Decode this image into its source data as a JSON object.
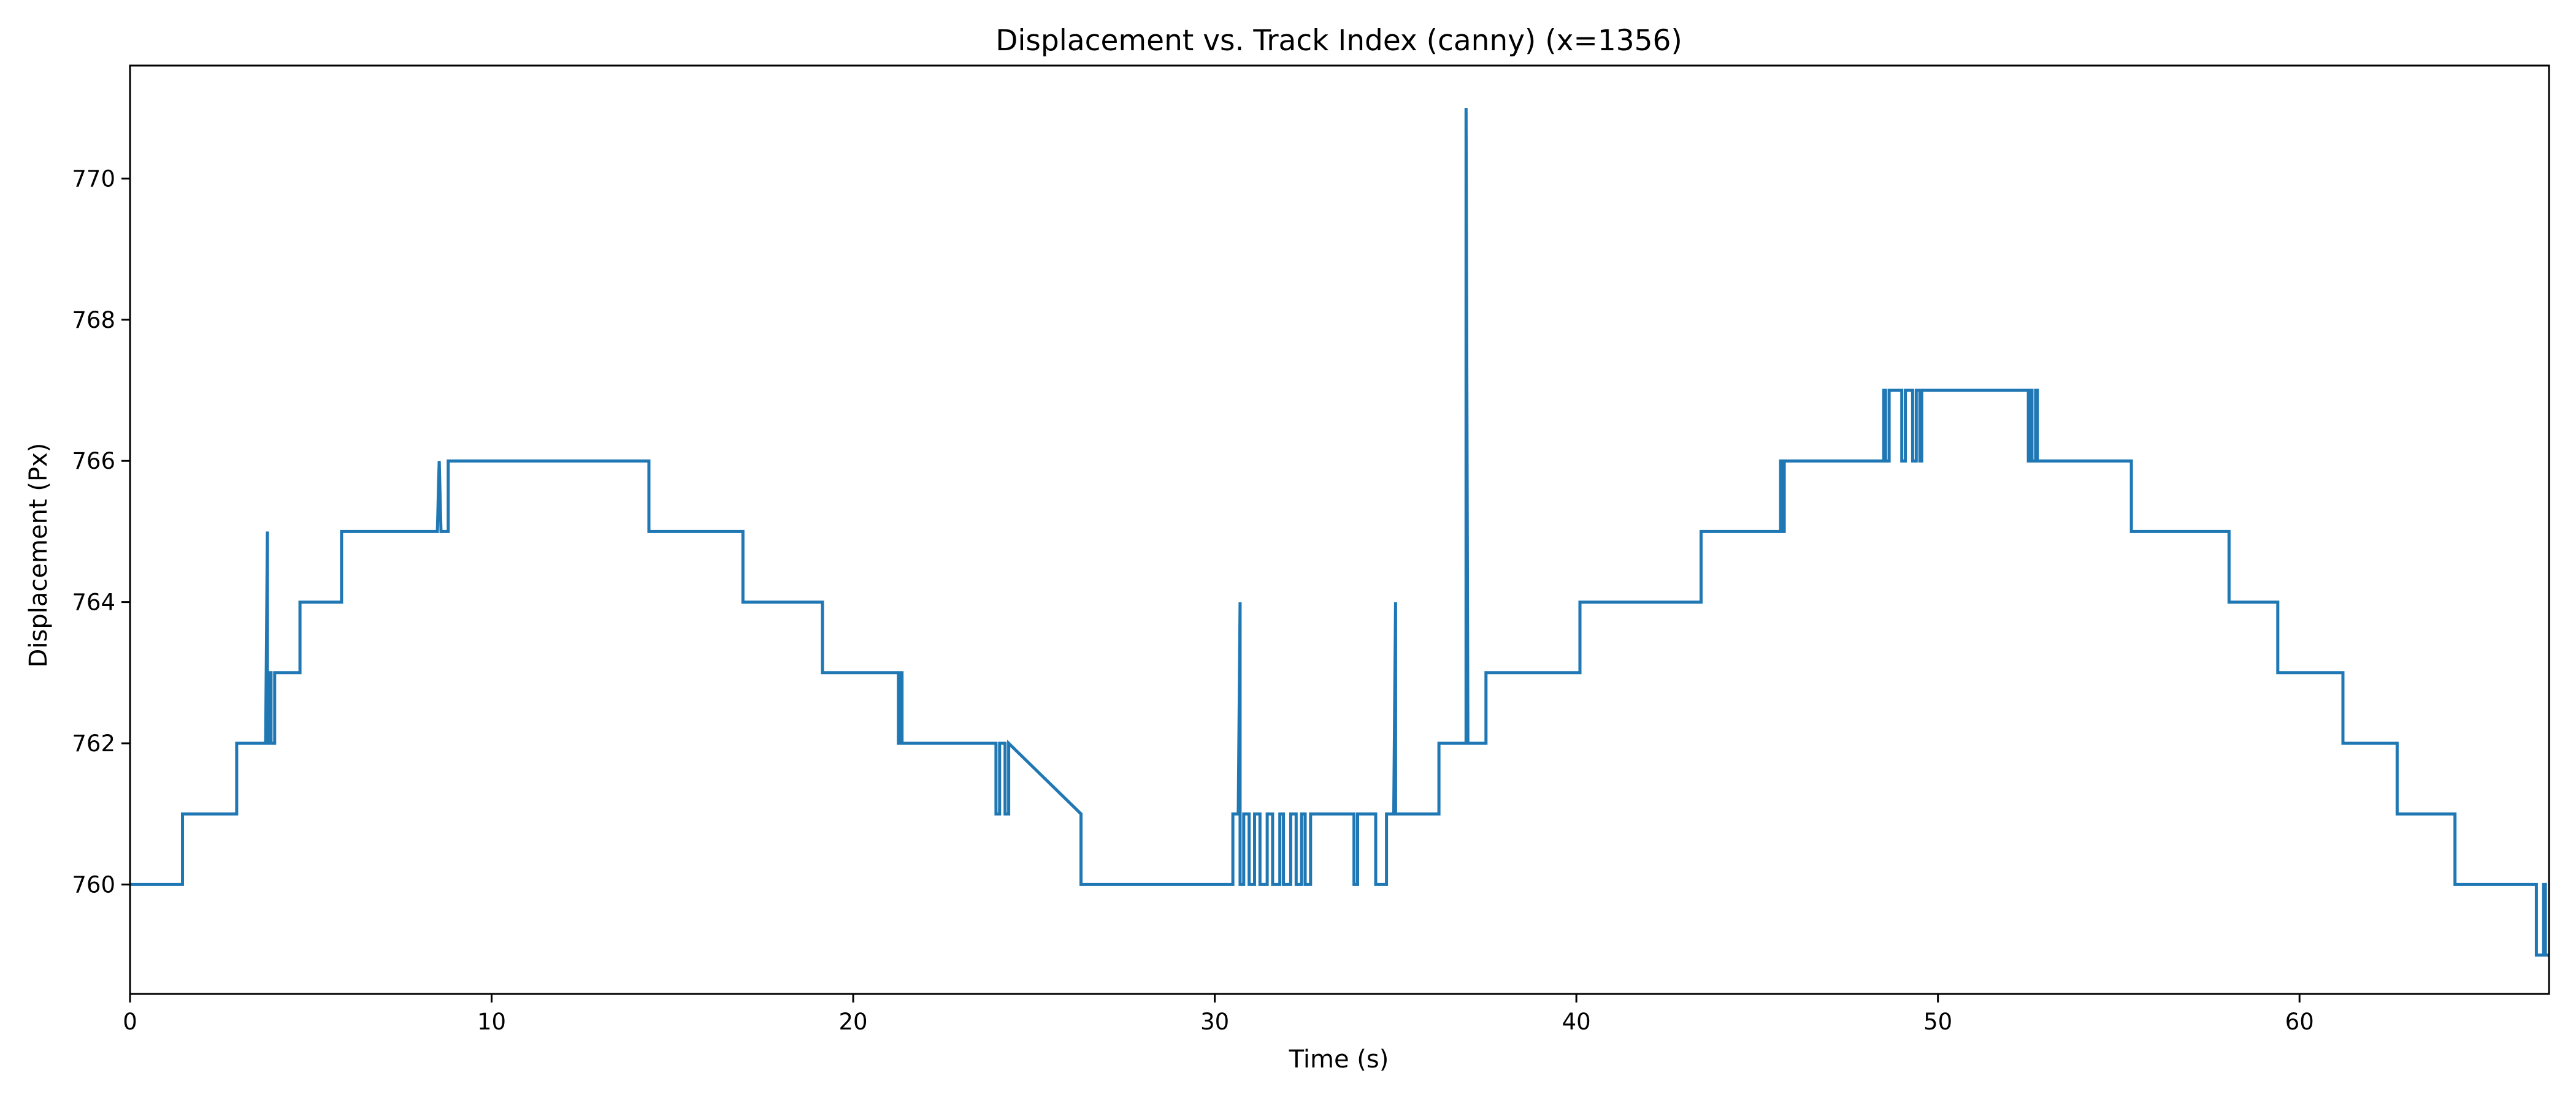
{
  "chart_data": {
    "type": "line",
    "title": "Displacement vs. Track Index (canny) (x=1356)",
    "xlabel": "Time (s)",
    "ylabel": "Displacement (Px)",
    "xlim": [
      0,
      66.9
    ],
    "ylim": [
      758.45,
      771.6
    ],
    "xticks": [
      0,
      10,
      20,
      30,
      40,
      50,
      60
    ],
    "yticks": [
      760,
      762,
      764,
      766,
      768,
      770
    ],
    "grid": false,
    "legend": "none",
    "line_color": "#1f77b4",
    "series": [
      {
        "x": [
          0,
          1.45,
          1.45,
          2.95,
          2.95,
          3.75,
          3.8,
          3.8,
          3.85,
          3.85,
          3.9,
          3.9,
          4.0,
          4.0,
          4.7,
          4.7,
          5.85,
          5.85,
          8.5,
          8.55,
          8.55,
          8.6,
          8.6,
          8.8,
          8.8,
          14.35,
          14.35,
          16.95,
          16.95,
          19.15,
          19.15,
          21.25,
          21.25,
          21.3,
          21.3,
          21.35,
          21.35,
          23.95,
          23.95,
          24.05,
          24.05,
          24.2,
          24.2,
          24.3,
          24.3,
          26.3,
          26.3,
          30.5,
          30.5,
          30.65,
          30.7,
          30.7,
          30.8,
          30.8,
          30.95,
          30.95,
          31.1,
          31.1,
          31.25,
          31.25,
          31.45,
          31.45,
          31.6,
          31.6,
          31.8,
          31.8,
          31.9,
          31.9,
          32.1,
          32.1,
          32.25,
          32.25,
          32.4,
          32.4,
          32.5,
          32.5,
          32.65,
          32.65,
          32.8,
          32.8,
          33.85,
          33.85,
          33.95,
          33.95,
          34.45,
          34.45,
          34.75,
          34.75,
          34.95,
          35.0,
          35.0,
          35.05,
          35.05,
          36.2,
          36.2,
          36.95,
          36.95,
          37.0,
          37.0,
          37.5,
          37.5,
          40.1,
          40.1,
          43.45,
          43.45,
          45.65,
          45.65,
          45.7,
          45.7,
          45.75,
          45.75,
          48.5,
          48.5,
          48.55,
          48.55,
          48.65,
          48.65,
          49.0,
          49.0,
          49.1,
          49.1,
          49.3,
          49.3,
          49.4,
          49.4,
          49.5,
          49.5,
          49.55,
          49.55,
          52.5,
          52.5,
          52.55,
          52.55,
          52.6,
          52.6,
          52.7,
          52.7,
          52.75,
          52.75,
          55.35,
          55.35,
          58.05,
          58.05,
          59.4,
          59.4,
          61.2,
          61.2,
          62.7,
          62.7,
          64.3,
          64.3,
          66.55,
          66.55,
          66.75,
          66.75,
          66.8,
          66.8,
          66.9
        ],
        "y": [
          760,
          760,
          761,
          761,
          762,
          762,
          765,
          762,
          762,
          763,
          763,
          762,
          762,
          763,
          763,
          764,
          764,
          765,
          765,
          766,
          766,
          765,
          765,
          765,
          766,
          766,
          765,
          765,
          764,
          764,
          763,
          763,
          762,
          762,
          763,
          763,
          762,
          762,
          761,
          761,
          762,
          762,
          761,
          761,
          762,
          761,
          760,
          760,
          761,
          761,
          764,
          760,
          760,
          761,
          761,
          760,
          760,
          761,
          761,
          760,
          760,
          761,
          761,
          760,
          760,
          761,
          761,
          760,
          760,
          761,
          761,
          760,
          760,
          761,
          761,
          760,
          760,
          761,
          761,
          761,
          761,
          760,
          760,
          761,
          761,
          760,
          760,
          761,
          761,
          764,
          761,
          761,
          761,
          761,
          762,
          762,
          771,
          762,
          762,
          762,
          763,
          763,
          764,
          764,
          765,
          765,
          766,
          766,
          765,
          765,
          766,
          766,
          767,
          767,
          766,
          766,
          767,
          767,
          766,
          766,
          767,
          767,
          766,
          766,
          767,
          767,
          766,
          766,
          767,
          767,
          766,
          766,
          767,
          767,
          766,
          766,
          767,
          767,
          766,
          766,
          765,
          765,
          764,
          764,
          763,
          763,
          762,
          762,
          761,
          761,
          760,
          760,
          759,
          759,
          760,
          760,
          759,
          759
        ]
      }
    ]
  }
}
